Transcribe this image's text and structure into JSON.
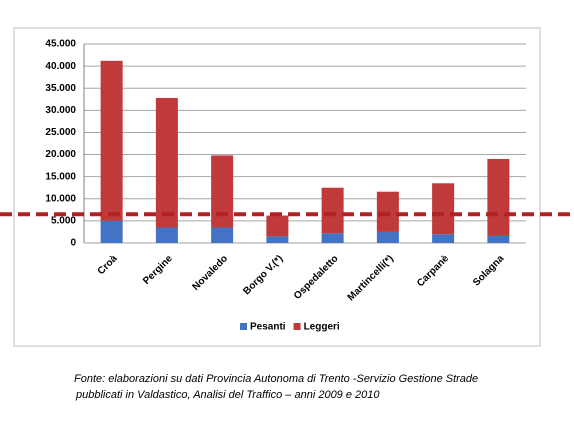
{
  "chart_data": {
    "type": "stacked_bar",
    "categories": [
      "Croà",
      "Pergine",
      "Novaledo",
      "Borgo V.(*)",
      "Ospedaletto",
      "Martincelli(*)",
      "Carpanè",
      "Solagna"
    ],
    "series": [
      {
        "name": "Pesanti",
        "color": "#4472c4",
        "values": [
          5000,
          3500,
          3500,
          1500,
          2200,
          2500,
          2000,
          1600
        ]
      },
      {
        "name": "Leggeri",
        "color": "#c0393b",
        "values": [
          36200,
          29300,
          16300,
          4700,
          10300,
          9100,
          11500,
          17400
        ]
      }
    ],
    "ylim": [
      0,
      45000
    ],
    "yticks": [
      0,
      {
        "value": 5000,
        "label": "5.000"
      },
      {
        "value": 10000,
        "label": "10.000"
      },
      {
        "value": 15000,
        "label": "15.000"
      },
      {
        "value": 20000,
        "label": "20.000"
      },
      {
        "value": 25000,
        "label": "25.000"
      },
      {
        "value": 30000,
        "label": "30.000"
      },
      {
        "value": 35000,
        "label": "35.000"
      },
      {
        "value": 40000,
        "label": "40.000"
      },
      {
        "value": 45000,
        "label": "45.000"
      }
    ],
    "grid": true,
    "legend": "bottom",
    "reference_line": {
      "value": 6500,
      "color": "#b22222"
    },
    "note": [
      "Fonte: elaborazioni su dati Provincia Autonoma di Trento -Servizio Gestione Strade",
      "pubblicati in Valdastico, Analisi del Traffico – anni 2009 e 2010"
    ]
  }
}
